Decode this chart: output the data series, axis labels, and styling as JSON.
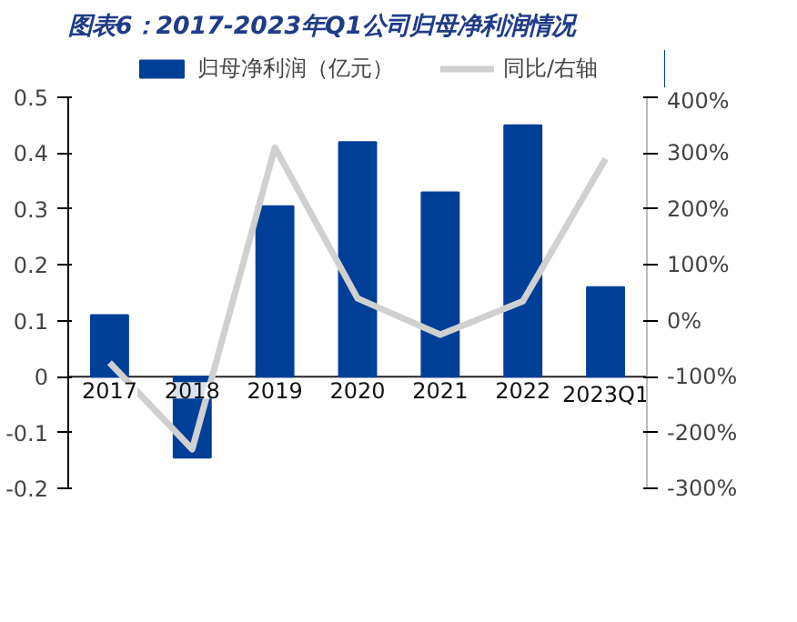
{
  "chart_data": {
    "type": "bar",
    "title": "图表6：2017-2023年Q1公司归母净利润情况",
    "categories": [
      "2017",
      "2018",
      "2019",
      "2020",
      "2021",
      "2022",
      "2023Q1"
    ],
    "series": [
      {
        "name": "归母净利润（亿元）",
        "color": "#003f98",
        "values": [
          0.11,
          -0.145,
          0.305,
          0.42,
          0.33,
          0.45,
          0.16
        ]
      },
      {
        "name": "同比/右轴",
        "type": "line",
        "axis": "y2",
        "color": "#d0d0d0",
        "values": [
          -75,
          -230,
          310,
          40,
          -25,
          35,
          290
        ]
      }
    ],
    "ylim": [
      -0.2,
      0.5
    ],
    "yticks": [
      -0.2,
      -0.1,
      0,
      0.1,
      0.2,
      0.3,
      0.4,
      0.5
    ],
    "y2lim": [
      -300,
      400
    ],
    "y2ticks": [
      {
        "value": -300,
        "label": "-300%"
      },
      {
        "value": -200,
        "label": "-200%"
      },
      {
        "value": -100,
        "label": "-100%"
      },
      {
        "value": 0,
        "label": "0%"
      },
      {
        "value": 100,
        "label": "100%"
      },
      {
        "value": 200,
        "label": "200%"
      },
      {
        "value": 300,
        "label": "300%"
      },
      {
        "value": 400,
        "label": "400%"
      }
    ],
    "grid": false,
    "legend": "top",
    "line_style": "solid",
    "marker": "none"
  }
}
